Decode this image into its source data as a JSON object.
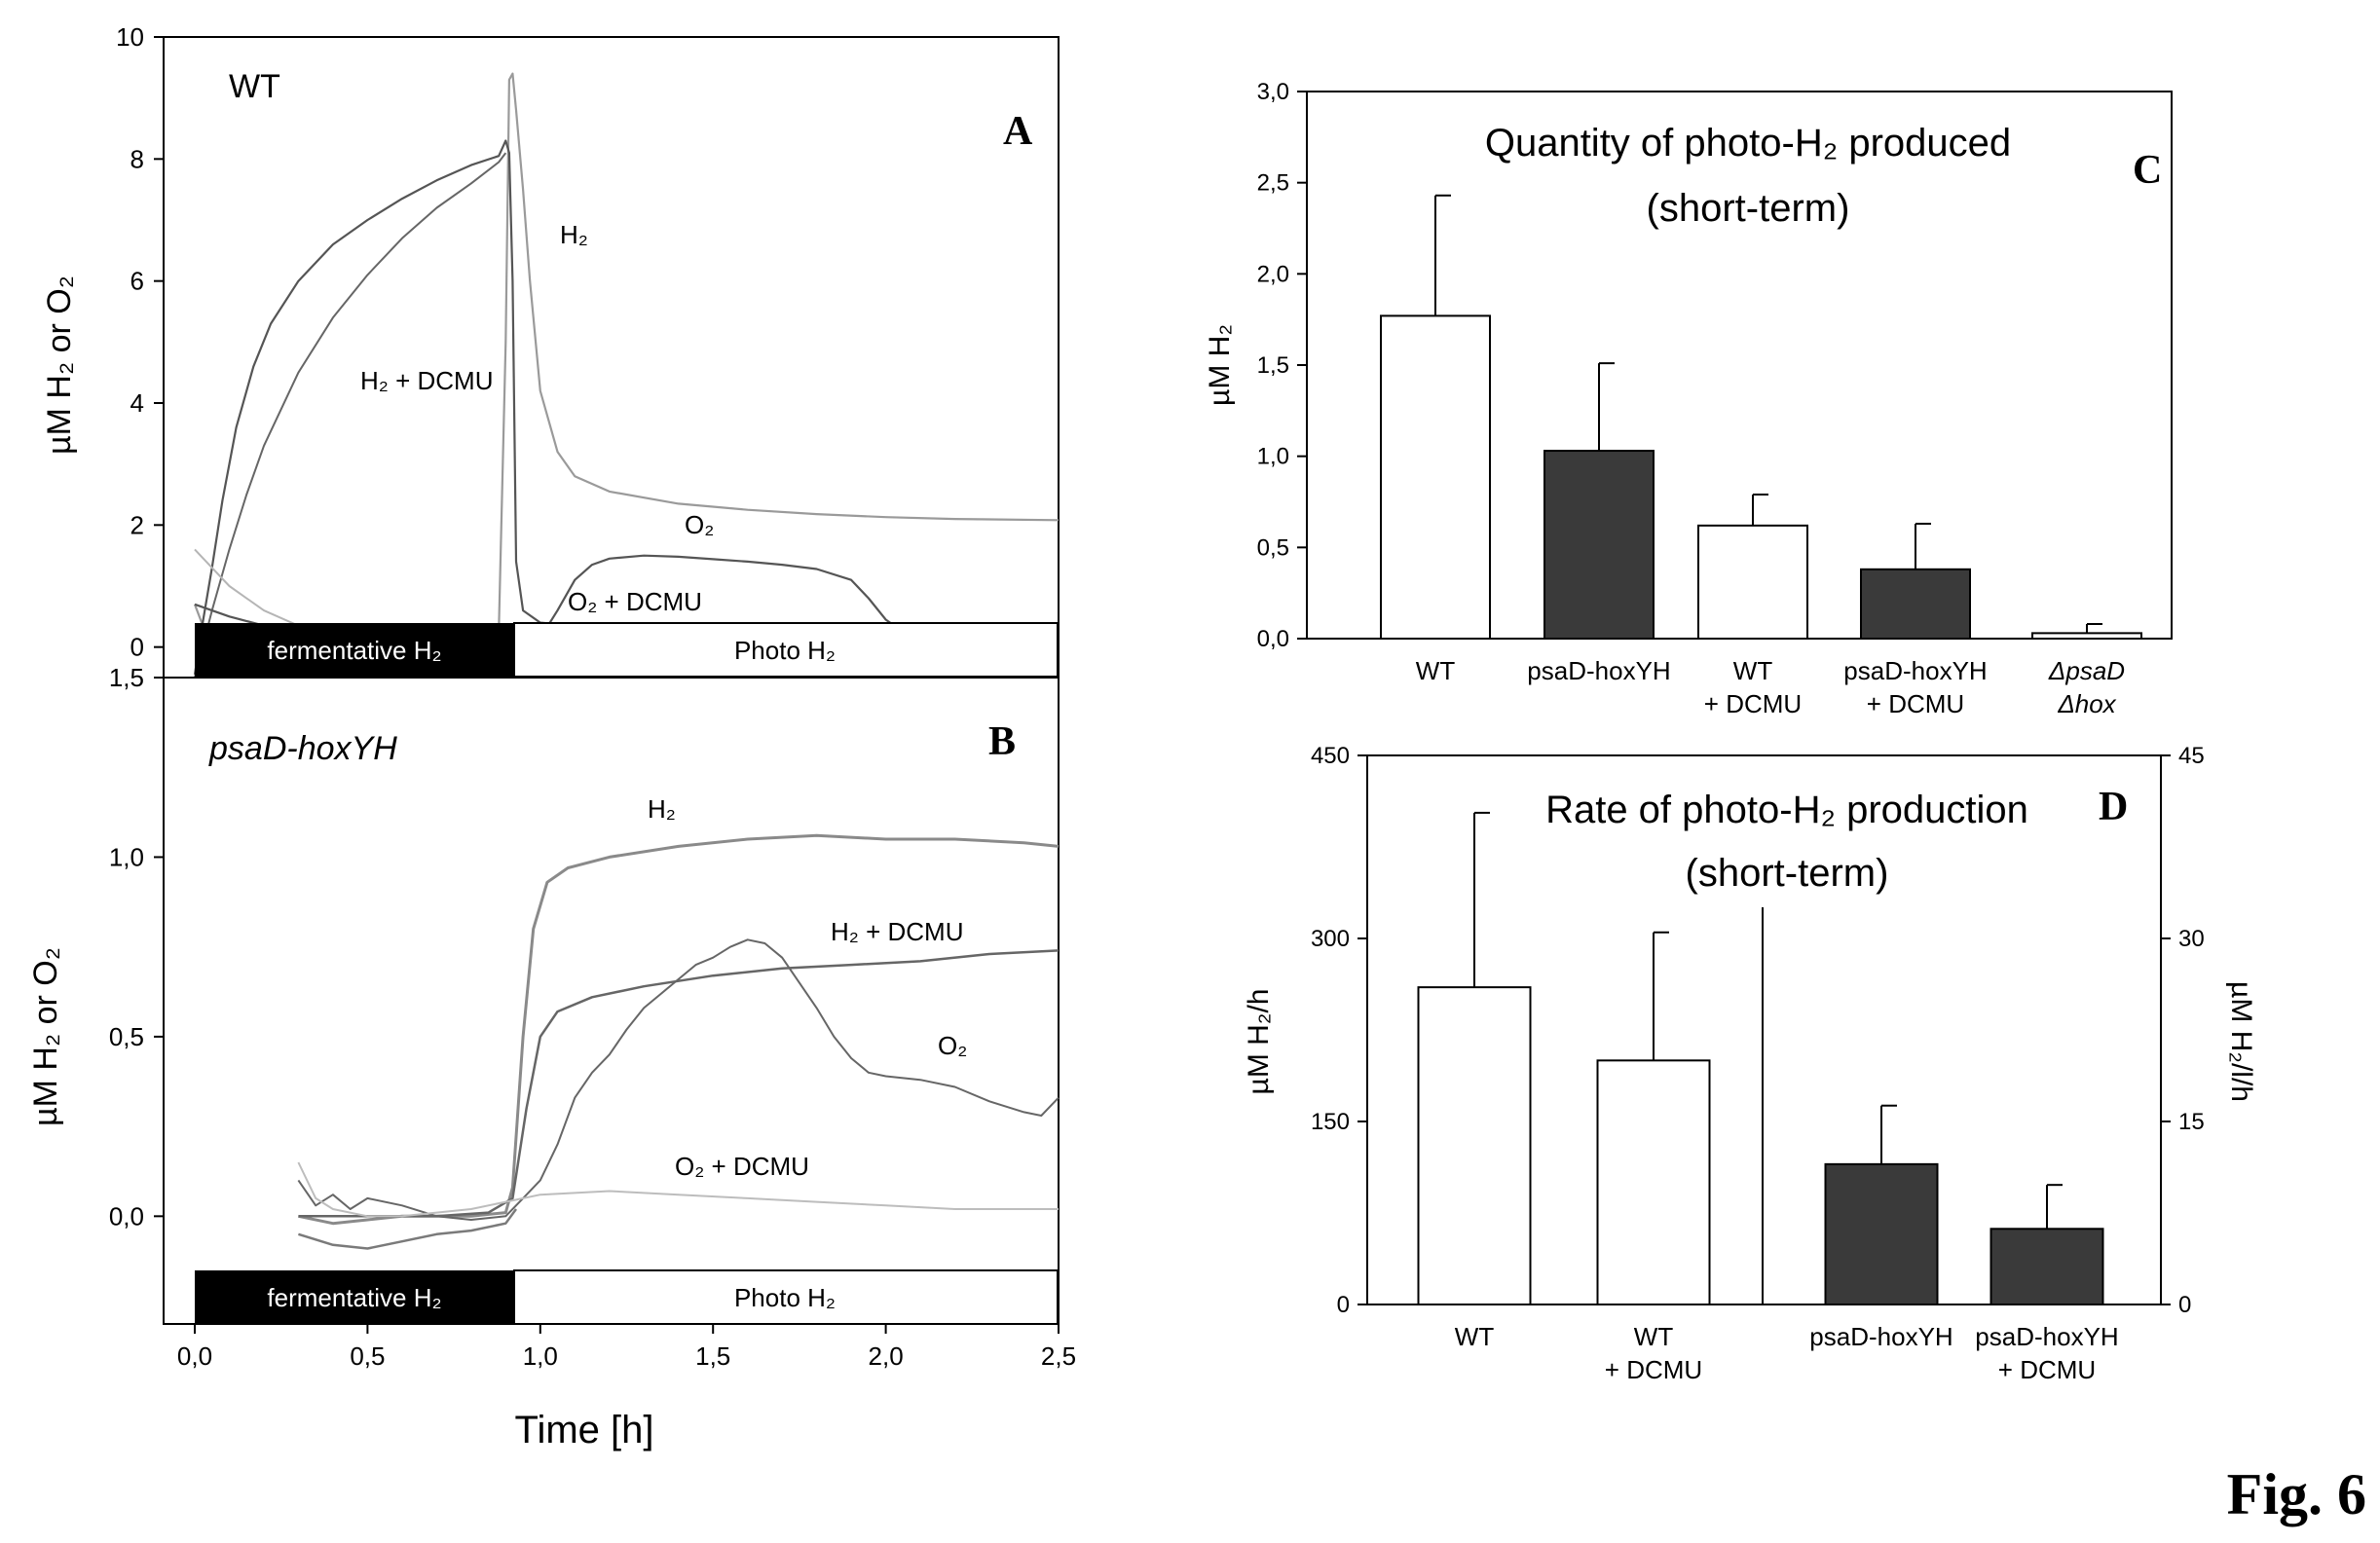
{
  "figure_label": "Fig. 6",
  "chart_data": [
    {
      "id": "A",
      "type": "line",
      "panel_letter": "A",
      "strain": "WT",
      "ylabel": "µM H₂ or O₂",
      "xlim": [
        0,
        2.5
      ],
      "ylim": [
        -0.5,
        10
      ],
      "yticks": [
        "0",
        "2",
        "4",
        "6",
        "8",
        "10"
      ],
      "bar_labels": {
        "dark": "fermentative H₂",
        "light": "Photo H₂"
      },
      "annotations": [
        "H₂",
        "H₂ + DCMU",
        "O₂",
        "O₂ + DCMU"
      ],
      "series": [
        {
          "label": "H₂",
          "color": "#9a9a9a",
          "width": 2.2,
          "points": [
            [
              0,
              0.7
            ],
            [
              0.02,
              0.4
            ],
            [
              0.05,
              0.25
            ],
            [
              0.1,
              0.2
            ],
            [
              0.2,
              0.18
            ],
            [
              0.4,
              0.16
            ],
            [
              0.6,
              0.15
            ],
            [
              0.8,
              0.15
            ],
            [
              0.88,
              0.25
            ],
            [
              0.9,
              5
            ],
            [
              0.91,
              9.3
            ],
            [
              0.92,
              9.4
            ],
            [
              0.93,
              8.8
            ],
            [
              0.95,
              7.5
            ],
            [
              0.97,
              6
            ],
            [
              1.0,
              4.2
            ],
            [
              1.05,
              3.2
            ],
            [
              1.1,
              2.8
            ],
            [
              1.2,
              2.55
            ],
            [
              1.4,
              2.35
            ],
            [
              1.6,
              2.25
            ],
            [
              1.8,
              2.18
            ],
            [
              2.0,
              2.13
            ],
            [
              2.2,
              2.1
            ],
            [
              2.5,
              2.08
            ]
          ]
        },
        {
          "label": "H₂ + DCMU",
          "color": "#555555",
          "width": 2.2,
          "points": [
            [
              0,
              -0.45
            ],
            [
              0.02,
              0.3
            ],
            [
              0.05,
              1.3
            ],
            [
              0.08,
              2.4
            ],
            [
              0.12,
              3.6
            ],
            [
              0.17,
              4.6
            ],
            [
              0.22,
              5.3
            ],
            [
              0.3,
              6.0
            ],
            [
              0.4,
              6.6
            ],
            [
              0.5,
              7.0
            ],
            [
              0.6,
              7.35
            ],
            [
              0.7,
              7.65
            ],
            [
              0.8,
              7.9
            ],
            [
              0.88,
              8.05
            ],
            [
              0.9,
              8.3
            ],
            [
              0.91,
              8.1
            ],
            [
              0.92,
              6
            ],
            [
              0.93,
              1.4
            ],
            [
              0.95,
              0.6
            ],
            [
              1.0,
              0.4
            ],
            [
              1.2,
              0.3
            ],
            [
              1.5,
              0.25
            ],
            [
              2.0,
              0.2
            ],
            [
              2.5,
              0.15
            ]
          ]
        },
        {
          "label": "H₂ + DCMU b",
          "color": "#666666",
          "width": 2,
          "points": [
            [
              0,
              -0.5
            ],
            [
              0.05,
              0.6
            ],
            [
              0.1,
              1.6
            ],
            [
              0.15,
              2.5
            ],
            [
              0.2,
              3.3
            ],
            [
              0.3,
              4.5
            ],
            [
              0.4,
              5.4
            ],
            [
              0.5,
              6.1
            ],
            [
              0.6,
              6.7
            ],
            [
              0.7,
              7.2
            ],
            [
              0.8,
              7.6
            ],
            [
              0.88,
              7.95
            ],
            [
              0.9,
              8.1
            ]
          ]
        },
        {
          "label": "O₂",
          "color": "#555555",
          "width": 2.2,
          "points": [
            [
              0,
              0.7
            ],
            [
              0.1,
              0.5
            ],
            [
              0.2,
              0.35
            ],
            [
              0.3,
              0.25
            ],
            [
              0.45,
              0.1
            ],
            [
              0.6,
              0.0
            ],
            [
              0.75,
              -0.02
            ],
            [
              0.9,
              0.0
            ],
            [
              1.0,
              0.15
            ],
            [
              1.05,
              0.6
            ],
            [
              1.1,
              1.1
            ],
            [
              1.15,
              1.35
            ],
            [
              1.2,
              1.45
            ],
            [
              1.3,
              1.5
            ],
            [
              1.4,
              1.48
            ],
            [
              1.5,
              1.44
            ],
            [
              1.6,
              1.4
            ],
            [
              1.7,
              1.35
            ],
            [
              1.8,
              1.28
            ],
            [
              1.9,
              1.1
            ],
            [
              1.95,
              0.8
            ],
            [
              2.0,
              0.45
            ],
            [
              2.05,
              0.25
            ],
            [
              2.2,
              0.18
            ],
            [
              2.5,
              0.15
            ]
          ]
        },
        {
          "label": "O₂ + DCMU",
          "color": "#b5b5b5",
          "width": 2,
          "points": [
            [
              0,
              1.6
            ],
            [
              0.05,
              1.3
            ],
            [
              0.1,
              1.0
            ],
            [
              0.2,
              0.6
            ],
            [
              0.3,
              0.35
            ],
            [
              0.4,
              0.2
            ],
            [
              0.5,
              0.12
            ],
            [
              0.7,
              0.08
            ],
            [
              0.9,
              0.06
            ],
            [
              1.2,
              0.08
            ],
            [
              1.5,
              0.1
            ],
            [
              2.0,
              0.12
            ],
            [
              2.5,
              0.12
            ]
          ]
        }
      ]
    },
    {
      "id": "B",
      "type": "line",
      "panel_letter": "B",
      "strain": "psaD-hoxYH",
      "ylabel": "µM H₂ or O₂",
      "xlabel": "Time [h]",
      "xlim": [
        0,
        2.5
      ],
      "ylim": [
        -0.3,
        1.5
      ],
      "xticks": [
        "0,0",
        "0,5",
        "1,0",
        "1,5",
        "2,0",
        "2,5"
      ],
      "yticks": [
        "0,0",
        "0,5",
        "1,0",
        "1,5"
      ],
      "bar_labels": {
        "dark": "fermentative H₂",
        "light": "Photo H₂"
      },
      "annotations": [
        "H₂",
        "H₂ + DCMU",
        "O₂",
        "O₂ + DCMU"
      ],
      "series": [
        {
          "label": "H₂",
          "color": "#8a8a8a",
          "width": 3,
          "points": [
            [
              0.3,
              0.0
            ],
            [
              0.4,
              -0.02
            ],
            [
              0.5,
              -0.01
            ],
            [
              0.6,
              0.0
            ],
            [
              0.7,
              0.0
            ],
            [
              0.8,
              0.0
            ],
            [
              0.9,
              0.01
            ],
            [
              0.92,
              0.08
            ],
            [
              0.95,
              0.5
            ],
            [
              0.98,
              0.8
            ],
            [
              1.02,
              0.93
            ],
            [
              1.08,
              0.97
            ],
            [
              1.2,
              1.0
            ],
            [
              1.4,
              1.03
            ],
            [
              1.6,
              1.05
            ],
            [
              1.8,
              1.06
            ],
            [
              2.0,
              1.05
            ],
            [
              2.2,
              1.05
            ],
            [
              2.4,
              1.04
            ],
            [
              2.5,
              1.03
            ]
          ]
        },
        {
          "label": "H₂ + DCMU",
          "color": "#666666",
          "width": 2.5,
          "points": [
            [
              0.3,
              0.0
            ],
            [
              0.5,
              0.0
            ],
            [
              0.7,
              0.0
            ],
            [
              0.85,
              0.01
            ],
            [
              0.92,
              0.05
            ],
            [
              0.96,
              0.3
            ],
            [
              1.0,
              0.5
            ],
            [
              1.05,
              0.57
            ],
            [
              1.15,
              0.61
            ],
            [
              1.3,
              0.64
            ],
            [
              1.5,
              0.67
            ],
            [
              1.7,
              0.69
            ],
            [
              1.9,
              0.7
            ],
            [
              2.1,
              0.71
            ],
            [
              2.3,
              0.73
            ],
            [
              2.5,
              0.74
            ]
          ]
        },
        {
          "label": "O₂",
          "color": "#666666",
          "width": 2,
          "points": [
            [
              0.3,
              0.1
            ],
            [
              0.35,
              0.03
            ],
            [
              0.4,
              0.06
            ],
            [
              0.45,
              0.02
            ],
            [
              0.5,
              0.05
            ],
            [
              0.6,
              0.03
            ],
            [
              0.7,
              0.0
            ],
            [
              0.8,
              -0.01
            ],
            [
              0.9,
              0.0
            ],
            [
              0.95,
              0.05
            ],
            [
              1.0,
              0.1
            ],
            [
              1.05,
              0.2
            ],
            [
              1.1,
              0.33
            ],
            [
              1.15,
              0.4
            ],
            [
              1.2,
              0.45
            ],
            [
              1.25,
              0.52
            ],
            [
              1.3,
              0.58
            ],
            [
              1.35,
              0.62
            ],
            [
              1.4,
              0.66
            ],
            [
              1.45,
              0.7
            ],
            [
              1.5,
              0.72
            ],
            [
              1.55,
              0.75
            ],
            [
              1.6,
              0.77
            ],
            [
              1.65,
              0.76
            ],
            [
              1.7,
              0.72
            ],
            [
              1.75,
              0.65
            ],
            [
              1.8,
              0.58
            ],
            [
              1.85,
              0.5
            ],
            [
              1.9,
              0.44
            ],
            [
              1.95,
              0.4
            ],
            [
              2.0,
              0.39
            ],
            [
              2.1,
              0.38
            ],
            [
              2.2,
              0.36
            ],
            [
              2.3,
              0.32
            ],
            [
              2.4,
              0.29
            ],
            [
              2.45,
              0.28
            ],
            [
              2.5,
              0.33
            ]
          ]
        },
        {
          "label": "O₂ + DCMU",
          "color": "#bdbdbd",
          "width": 2,
          "points": [
            [
              0.3,
              0.15
            ],
            [
              0.35,
              0.05
            ],
            [
              0.4,
              0.02
            ],
            [
              0.5,
              0.0
            ],
            [
              0.6,
              0.0
            ],
            [
              0.7,
              0.01
            ],
            [
              0.8,
              0.02
            ],
            [
              0.9,
              0.04
            ],
            [
              1.0,
              0.06
            ],
            [
              1.2,
              0.07
            ],
            [
              1.4,
              0.06
            ],
            [
              1.6,
              0.05
            ],
            [
              1.8,
              0.04
            ],
            [
              2.0,
              0.03
            ],
            [
              2.2,
              0.02
            ],
            [
              2.5,
              0.02
            ]
          ]
        },
        {
          "label": "H₂ + DCMU lower",
          "color": "#7a7a7a",
          "width": 2.5,
          "points": [
            [
              0.3,
              -0.05
            ],
            [
              0.4,
              -0.08
            ],
            [
              0.5,
              -0.09
            ],
            [
              0.6,
              -0.07
            ],
            [
              0.7,
              -0.05
            ],
            [
              0.8,
              -0.04
            ],
            [
              0.9,
              -0.02
            ],
            [
              0.93,
              0.02
            ]
          ]
        }
      ]
    },
    {
      "id": "C",
      "type": "bar",
      "panel_letter": "C",
      "title": "Quantity of photo-H₂ produced",
      "subtitle": "(short-term)",
      "ylabel": "µM H₂",
      "ylim": [
        0,
        3.0
      ],
      "yticks": [
        "0,0",
        "0,5",
        "1,0",
        "1,5",
        "2,0",
        "2,5",
        "3,0"
      ],
      "categories": [
        {
          "line1": "WT",
          "line2": "",
          "italic": false
        },
        {
          "line1": "psaD-hoxYH",
          "line2": "",
          "italic": false
        },
        {
          "line1": "WT",
          "line2": "+ DCMU",
          "italic": false
        },
        {
          "line1": "psaD-hoxYH",
          "line2": "+ DCMU",
          "italic": false
        },
        {
          "line1": "ΔpsaD",
          "line2": "Δhox",
          "italic": true
        }
      ],
      "values": [
        1.77,
        1.03,
        0.62,
        0.38,
        0.03
      ],
      "errors": [
        0.66,
        0.48,
        0.17,
        0.25,
        0.05
      ],
      "fills": [
        "#ffffff",
        "#3a3a3a",
        "#ffffff",
        "#3a3a3a",
        "#ffffff"
      ]
    },
    {
      "id": "D",
      "type": "bar",
      "panel_letter": "D",
      "title": "Rate of photo-H₂ production",
      "subtitle": "(short-term)",
      "ylabel": "µM H₂/h",
      "y2label": "µM H₂/l/h",
      "ylim": [
        0,
        450
      ],
      "y2lim": [
        0,
        45
      ],
      "yticks": [
        "0",
        "150",
        "300",
        "450"
      ],
      "y2ticks": [
        "0",
        "15",
        "30",
        "45"
      ],
      "categories": [
        {
          "line1": "WT",
          "line2": ""
        },
        {
          "line1": "WT",
          "line2": "+ DCMU"
        },
        {
          "line1": "psaD-hoxYH",
          "line2": ""
        },
        {
          "line1": "psaD-hoxYH",
          "line2": "+ DCMU"
        }
      ],
      "values": [
        260,
        200,
        115,
        62
      ],
      "errors": [
        143,
        105,
        48,
        36
      ],
      "fills": [
        "#ffffff",
        "#ffffff",
        "#3a3a3a",
        "#3a3a3a"
      ]
    }
  ]
}
